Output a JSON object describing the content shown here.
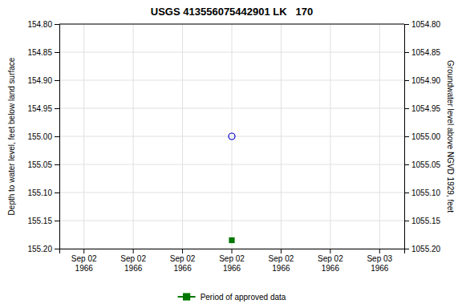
{
  "chart_data": {
    "type": "scatter",
    "title": "USGS 413556075442901 LK   170",
    "y_label": "Depth to water level, feet below land surface",
    "y2_label": "Groundwater level above NGVD 1929, feet",
    "categories": [
      "Sep 02\n1966",
      "Sep 02\n1966",
      "Sep 02\n1966",
      "Sep 02\n1966",
      "Sep 02\n1966",
      "Sep 02\n1966",
      "Sep 03\n1966"
    ],
    "series": [
      {
        "color": "#0000cc",
        "marker": "open-circle",
        "values": [
          null,
          null,
          null,
          155.0,
          null,
          null,
          null
        ]
      },
      {
        "name": "Period of approved data",
        "color": "#007700",
        "marker": "square",
        "values": [
          null,
          null,
          null,
          155.185,
          null,
          null,
          null
        ]
      }
    ],
    "ylim": [
      155.2,
      154.8
    ],
    "yticks": [
      {
        "value": 154.8,
        "label": "154.80"
      },
      {
        "value": 154.85,
        "label": "154.85"
      },
      {
        "value": 154.9,
        "label": "154.90"
      },
      {
        "value": 154.95,
        "label": "154.95"
      },
      {
        "value": 155.0,
        "label": "155.00"
      },
      {
        "value": 155.05,
        "label": "155.05"
      },
      {
        "value": 155.1,
        "label": "155.10"
      },
      {
        "value": 155.15,
        "label": "155.15"
      },
      {
        "value": 155.2,
        "label": "155.20"
      }
    ],
    "y2lim": [
      1055.2,
      1054.8
    ],
    "y2ticks": [
      {
        "value": 1055.2,
        "label": "1055.20"
      },
      {
        "value": 1055.15,
        "label": "1055.15"
      },
      {
        "value": 1055.1,
        "label": "1055.10"
      },
      {
        "value": 1055.05,
        "label": "1055.05"
      },
      {
        "value": 1055.0,
        "label": "1055.00"
      },
      {
        "value": 1054.95,
        "label": "1054.95"
      },
      {
        "value": 1054.9,
        "label": "1054.90"
      },
      {
        "value": 1054.85,
        "label": "1054.85"
      },
      {
        "value": 1054.8,
        "label": "1054.80"
      }
    ],
    "grid": true,
    "legend": "bottom"
  }
}
